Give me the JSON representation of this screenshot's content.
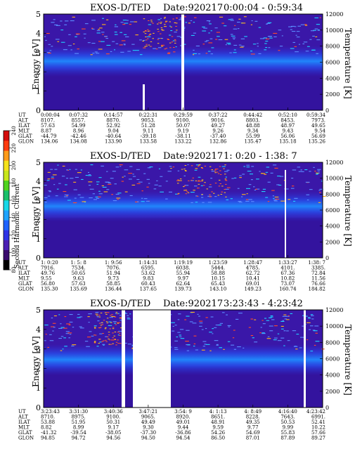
{
  "colorbar": {
    "label": "Second Harmonic Current",
    "ticks": [
      "80",
      "100",
      "120",
      "140",
      "160",
      "180",
      "200",
      "220",
      "240"
    ],
    "colors": [
      "#000000",
      "#3a0a6e",
      "#4b1fb4",
      "#2e33e6",
      "#1f63ff",
      "#1fa4ff",
      "#18d8e8",
      "#19c06a",
      "#4fd31d",
      "#c8e61a",
      "#f5e21a",
      "#ff9b1a",
      "#ff3b10",
      "#d40c0c"
    ]
  },
  "chart_data": [
    {
      "type": "heatmap",
      "title": "EXOS-D/TED",
      "date": "Date:920217",
      "time_range": "0:00:04 - 0:59:34",
      "ylabel": "Energy [eV]",
      "y2label": "Temperature [K]",
      "ylim": [
        0,
        5
      ],
      "yticks": [
        "0",
        "1",
        "2",
        "3",
        "4",
        "5"
      ],
      "y2lim": [
        0,
        12000
      ],
      "y2ticks": [
        "0",
        "2000",
        "4000",
        "6000",
        "8000",
        "10000",
        "12000"
      ],
      "band_center_ev": 2.55,
      "row_labels": [
        "UT",
        "ALT",
        "ILAT",
        "MLT",
        "GLAT",
        "GLON"
      ],
      "columns": [
        [
          "0:00:04",
          "8107.",
          "57.63",
          "8.87",
          "-44.79",
          "134.06"
        ],
        [
          "0:07:32",
          "8557.",
          "54.99",
          "8.96",
          "-42.46",
          "134.08"
        ],
        [
          "0:14:57",
          "8870.",
          "52.92",
          "9.04",
          "-40.64",
          "133.90"
        ],
        [
          "0:22:31",
          "9053.",
          "51.28",
          "9.11",
          "-39.18",
          "133.58"
        ],
        [
          "0:29:59",
          "9100.",
          "50.07",
          "9.19",
          "-38.11",
          "133.22"
        ],
        [
          "0:37:22",
          "9016.",
          "49.27",
          "9.26",
          "-37.40",
          "132.86"
        ],
        [
          "0:44:42",
          "8803.",
          "48.88",
          "9.34",
          "55.99",
          "135.47"
        ],
        [
          "0:52:10",
          "8453.",
          "48.97",
          "9.43",
          "56.06",
          "135.18"
        ],
        [
          "0:59:34",
          "7973.",
          "49.65",
          "9.54",
          "56.69",
          "135.26"
        ]
      ]
    },
    {
      "type": "heatmap",
      "title": "EXOS-D/TED",
      "date": "Date:920217",
      "time_range": "1: 0:20 - 1:38: 7",
      "ylabel": "Energy [eV]",
      "y2label": "Temperature [K]",
      "ylim": [
        0,
        5
      ],
      "yticks": [
        "0",
        "1",
        "2",
        "3",
        "4",
        "5"
      ],
      "y2lim": [
        0,
        12000
      ],
      "y2ticks": [
        "0",
        "2000",
        "4000",
        "6000",
        "8000",
        "10000",
        "12000"
      ],
      "band_center_ev": 2.7,
      "row_labels": [
        "UT",
        "ALT",
        "ILAT",
        "MLT",
        "GLAT",
        "GLON"
      ],
      "columns": [
        [
          "1: 0:20",
          "7916.",
          "49.76",
          "9.55",
          "56.80",
          "135.30"
        ],
        [
          "1: 5: 8",
          "7534.",
          "50.65",
          "9.63",
          "57.63",
          "135.69"
        ],
        [
          "1: 9:56",
          "7076.",
          "51.94",
          "9.73",
          "58.85",
          "136.44"
        ],
        [
          "1:14:31",
          "6595.",
          "53.62",
          "9.83",
          "60.43",
          "137.65"
        ],
        [
          "1:19:19",
          "6038.",
          "55.94",
          "9.97",
          "62.64",
          "139.73"
        ],
        [
          "1:23:59",
          "5444.",
          "58.88",
          "10.15",
          "65.43",
          "143.10"
        ],
        [
          "1:28:47",
          "4785.",
          "62.72",
          "10.41",
          "69.01",
          "149.23"
        ],
        [
          "1:33:27",
          "4101.",
          "67.36",
          "10.82",
          "73.07",
          "160.74"
        ],
        [
          "1:38: 7",
          "3385.",
          "72.84",
          "11.56",
          "76.66",
          "184.82"
        ]
      ]
    },
    {
      "type": "heatmap",
      "title": "EXOS-D/TED",
      "date": "Date:920217",
      "time_range": "3:23:43 - 4:23:42",
      "ylabel": "Energy [eV]",
      "y2label": "Temperature [K]",
      "ylim": [
        0,
        5
      ],
      "yticks": [
        "0",
        "1",
        "2",
        "3",
        "4",
        "5"
      ],
      "y2lim": [
        0,
        12000
      ],
      "y2ticks": [
        "0",
        "2000",
        "4000",
        "6000",
        "8000",
        "10000",
        "12000"
      ],
      "band_center_ev": 2.45,
      "row_labels": [
        "UT",
        "ALT",
        "ILAT",
        "MLT",
        "GLAT",
        "GLON"
      ],
      "columns": [
        [
          "3:23:43",
          "8710.",
          "53.88",
          "8.82",
          "-41.32",
          "94.85"
        ],
        [
          "3:31:30",
          "8975.",
          "51.95",
          "8.99",
          "-39.54",
          "94.72"
        ],
        [
          "3:40:36",
          "9100.",
          "50.31",
          "9.17",
          "-38.05",
          "94.56"
        ],
        [
          "3:47:21",
          "9065.",
          "49.49",
          "9.30",
          "-37.30",
          "94.50"
        ],
        [
          "3:54: 9",
          "8920.",
          "49.01",
          "9.44",
          "-36.86",
          "94.54"
        ],
        [
          "4: 1:13",
          "8651.",
          "48.91",
          "9.59",
          "54.26",
          "86.50"
        ],
        [
          "4: 8:49",
          "8228.",
          "49.35",
          "9.77",
          "54.69",
          "87.01"
        ],
        [
          "4:16:40",
          "7643.",
          "50.53",
          "9.99",
          "55.83",
          "87.89"
        ],
        [
          "4:23:42",
          "6991.",
          "52.41",
          "10.22",
          "57.66",
          "89.27"
        ]
      ]
    }
  ]
}
